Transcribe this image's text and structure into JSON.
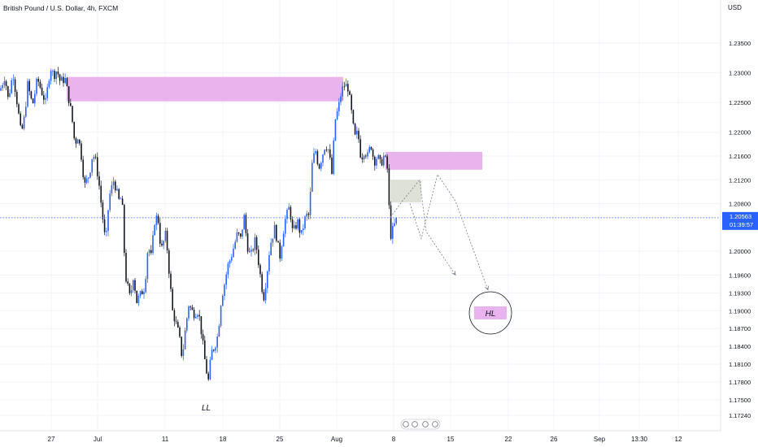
{
  "header": {
    "title": "British Pound / U.S. Dollar, 4h, FXCM"
  },
  "price_axis": {
    "currency": "USD",
    "ticks": [
      "1.23500",
      "1.23000",
      "1.22500",
      "1.22000",
      "1.21600",
      "1.21200",
      "1.20800",
      "1.20000",
      "1.19600",
      "1.19300",
      "1.19000",
      "1.18700",
      "1.18400",
      "1.18100",
      "1.17800",
      "1.17500",
      "1.17240"
    ],
    "current_price": "1.20563",
    "countdown": "01:39:57"
  },
  "time_axis": {
    "ticks": [
      "27",
      "Jul",
      "11",
      "18",
      "25",
      "Aug",
      "8",
      "15",
      "22",
      "26",
      "Sep",
      "13:30",
      "12"
    ]
  },
  "annotations": {
    "ll": "LL",
    "hl": "HL"
  },
  "colors": {
    "up": "#2962ff",
    "down": "#131722",
    "zone": "#e9b3ee",
    "box": "#d6d9cc",
    "price_line": "#2962ff",
    "grid": "#f0f3fa",
    "axis_text": "#131722"
  },
  "chart_data": {
    "type": "candlestick",
    "title": "British Pound / U.S. Dollar, 4h, FXCM",
    "ylabel": "USD",
    "ylim": [
      1.1705,
      1.2395
    ],
    "x_ticks": [
      "27",
      "Jul",
      "11",
      "18",
      "25",
      "Aug",
      "8",
      "15",
      "22",
      "26",
      "Sep",
      "13:30",
      "12"
    ],
    "current_price": 1.20563,
    "path": [
      [
        0,
        1.227
      ],
      [
        6,
        1.2295
      ],
      [
        10,
        1.2255
      ],
      [
        16,
        1.23
      ],
      [
        22,
        1.224
      ],
      [
        26,
        1.2195
      ],
      [
        30,
        1.2225
      ],
      [
        34,
        1.228
      ],
      [
        40,
        1.2245
      ],
      [
        46,
        1.229
      ],
      [
        52,
        1.2265
      ],
      [
        56,
        1.225
      ],
      [
        62,
        1.231
      ],
      [
        66,
        1.2295
      ],
      [
        70,
        1.2305
      ],
      [
        74,
        1.2285
      ],
      [
        80,
        1.229
      ],
      [
        84,
        1.226
      ],
      [
        88,
        1.223
      ],
      [
        92,
        1.218
      ],
      [
        96,
        1.2195
      ],
      [
        100,
        1.216
      ],
      [
        104,
        1.211
      ],
      [
        110,
        1.213
      ],
      [
        114,
        1.2165
      ],
      [
        118,
        1.215
      ],
      [
        122,
        1.211
      ],
      [
        126,
        1.206
      ],
      [
        130,
        1.201
      ],
      [
        134,
        1.209
      ],
      [
        140,
        1.212
      ],
      [
        146,
        1.2085
      ],
      [
        150,
        1.209
      ],
      [
        154,
        1.196
      ],
      [
        160,
        1.192
      ],
      [
        164,
        1.196
      ],
      [
        168,
        1.1915
      ],
      [
        174,
        1.193
      ],
      [
        178,
        1.194
      ],
      [
        182,
        1.201
      ],
      [
        186,
        1.199
      ],
      [
        190,
        1.205
      ],
      [
        194,
        1.206
      ],
      [
        198,
        1.2
      ],
      [
        204,
        1.203
      ],
      [
        208,
        1.1965
      ],
      [
        212,
        1.19
      ],
      [
        216,
        1.188
      ],
      [
        220,
        1.186
      ],
      [
        224,
        1.182
      ],
      [
        228,
        1.187
      ],
      [
        232,
        1.191
      ],
      [
        238,
        1.1895
      ],
      [
        244,
        1.19
      ],
      [
        248,
        1.186
      ],
      [
        252,
        1.1815
      ],
      [
        256,
        1.178
      ],
      [
        260,
        1.183
      ],
      [
        264,
        1.184
      ],
      [
        268,
        1.186
      ],
      [
        272,
        1.192
      ],
      [
        276,
        1.1945
      ],
      [
        280,
        1.1975
      ],
      [
        284,
        1.199
      ],
      [
        288,
        1.201
      ],
      [
        292,
        1.203
      ],
      [
        296,
        1.202
      ],
      [
        300,
        1.206
      ],
      [
        304,
        1.201
      ],
      [
        308,
        1.199
      ],
      [
        314,
        1.202
      ],
      [
        320,
        1.196
      ],
      [
        324,
        1.192
      ],
      [
        328,
        1.196
      ],
      [
        332,
        1.201
      ],
      [
        338,
        1.204
      ],
      [
        344,
        1.199
      ],
      [
        350,
        1.205
      ],
      [
        356,
        1.2075
      ],
      [
        360,
        1.203
      ],
      [
        366,
        1.205
      ],
      [
        370,
        1.2025
      ],
      [
        376,
        1.206
      ],
      [
        380,
        1.206
      ],
      [
        384,
        1.215
      ],
      [
        388,
        1.217
      ],
      [
        392,
        1.214
      ],
      [
        396,
        1.216
      ],
      [
        400,
        1.218
      ],
      [
        404,
        1.217
      ],
      [
        408,
        1.213
      ],
      [
        412,
        1.222
      ],
      [
        416,
        1.224
      ],
      [
        420,
        1.227
      ],
      [
        424,
        1.228
      ],
      [
        428,
        1.2275
      ],
      [
        432,
        1.2235
      ],
      [
        436,
        1.219
      ],
      [
        440,
        1.22
      ],
      [
        444,
        1.2155
      ],
      [
        448,
        1.217
      ],
      [
        452,
        1.216
      ],
      [
        456,
        1.218
      ],
      [
        460,
        1.215
      ],
      [
        464,
        1.216
      ],
      [
        468,
        1.2145
      ],
      [
        472,
        1.216
      ],
      [
        476,
        1.2145
      ],
      [
        480,
        1.2025
      ],
      [
        484,
        1.204
      ],
      [
        488,
        1.2056
      ]
    ],
    "zones": [
      {
        "x0": 82,
        "x1": 422,
        "y_top": 1.2293,
        "y_bot": 1.2252
      },
      {
        "x0": 474,
        "x1": 593,
        "y_top": 1.2167,
        "y_bot": 1.2137
      }
    ],
    "box": {
      "x0": 480,
      "x1": 518,
      "y_top": 1.212,
      "y_bot": 1.2082
    },
    "projection_paths": [
      [
        [
          480,
          1.2057
        ],
        [
          494,
          1.2083
        ],
        [
          516,
          1.212
        ],
        [
          524,
          1.2033
        ],
        [
          560,
          1.196
        ]
      ],
      [
        [
          504,
          1.208
        ],
        [
          518,
          1.2021
        ],
        [
          538,
          1.2129
        ],
        [
          560,
          1.20845
        ],
        [
          600,
          1.1935
        ]
      ]
    ]
  }
}
